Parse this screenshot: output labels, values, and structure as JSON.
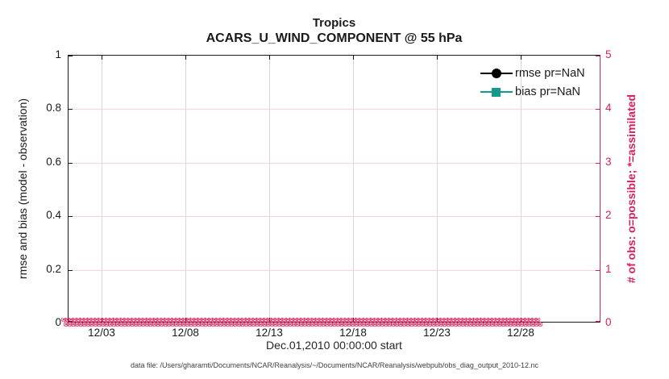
{
  "title": {
    "line1": "Tropics",
    "line2": "ACARS_U_WIND_COMPONENT @ 55 hPa"
  },
  "legend": [
    {
      "label": "rmse pr=NaN",
      "marker": "circle",
      "color": "#000000"
    },
    {
      "label": "bias pr=NaN",
      "marker": "square",
      "color": "#129b8c"
    }
  ],
  "left_axis": {
    "label": "rmse and bias (model - observation)",
    "ticks": [
      "0",
      "0.2",
      "0.4",
      "0.6",
      "0.8",
      "1"
    ]
  },
  "right_axis": {
    "label": "# of obs: o=possible; *=assimilated",
    "ticks": [
      "0",
      "1",
      "2",
      "3",
      "4",
      "5"
    ],
    "color": "#d81e5b"
  },
  "x_axis": {
    "ticks": [
      "12/03",
      "12/08",
      "12/13",
      "12/18",
      "12/23",
      "12/28"
    ],
    "label": "Dec.01,2010 00:00:00 start"
  },
  "footer": {
    "data_file": "data file: /Users/gharamti/Documents/NCAR/Reanalysis/~/Documents/NCAR/Reanalysis/webpub/obs_diag_output_2010-12.nc"
  },
  "colors": {
    "obs_axis_pink": "#d81e5b",
    "bias_teal": "#129b8c",
    "rmse_black": "#000000",
    "grid_vertical_gray": "#d9d9d9",
    "grid_horizontal_pink": "#f6d3df"
  },
  "chart_data": {
    "type": "line",
    "title": "Tropics",
    "subtitle": "ACARS_U_WIND_COMPONENT @ 55 hPa",
    "xlabel": "Dec.01,2010 00:00:00 start",
    "ylabel_left": "rmse and bias (model - observation)",
    "ylabel_right": "# of obs: o=possible; *=assimilated",
    "x_tick_labels": [
      "12/03",
      "12/08",
      "12/13",
      "12/18",
      "12/23",
      "12/28"
    ],
    "x_range": "Dec 01 2010 through Dec 31 2010, 6-hourly bins",
    "ylim_left": [
      0,
      1
    ],
    "ylim_right": [
      0,
      5
    ],
    "grid": true,
    "legend_position": "top-right inside, no box",
    "series": [
      {
        "name": "rmse pr=NaN",
        "axis": "left",
        "marker": "filled circle",
        "color": "#000000",
        "values": "NaN — no curve plotted"
      },
      {
        "name": "bias pr=NaN",
        "axis": "left",
        "marker": "filled square",
        "color": "#129b8c",
        "values": "NaN — no curve plotted"
      },
      {
        "name": "# of obs possible (o markers)",
        "axis": "right",
        "color": "#d81e5b",
        "value_every_bin": 0
      },
      {
        "name": "# of obs assimilated (x markers)",
        "axis": "right",
        "color": "#d81e5b",
        "value_every_bin": 0
      }
    ]
  }
}
